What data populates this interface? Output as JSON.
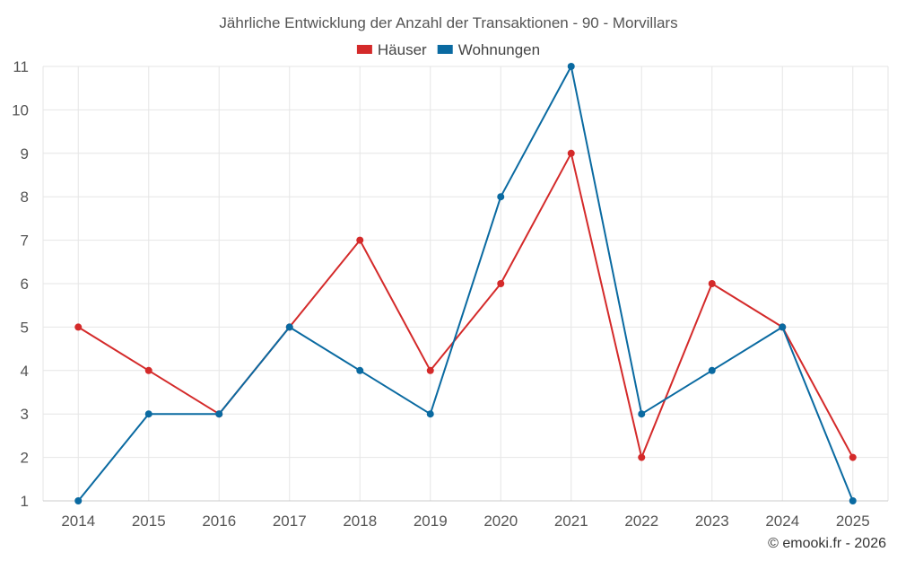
{
  "chart_data": {
    "type": "line",
    "title": "Jährliche Entwicklung der Anzahl der Transaktionen - 90 - Morvillars",
    "x": [
      "2014",
      "2015",
      "2016",
      "2017",
      "2018",
      "2019",
      "2020",
      "2021",
      "2022",
      "2023",
      "2024",
      "2025"
    ],
    "series": [
      {
        "name": "Häuser",
        "color": "#d42a2a",
        "values": [
          5,
          4,
          3,
          5,
          7,
          4,
          6,
          9,
          2,
          6,
          5,
          2
        ]
      },
      {
        "name": "Wohnungen",
        "color": "#0a6aa1",
        "values": [
          1,
          3,
          3,
          5,
          4,
          3,
          8,
          11,
          3,
          4,
          5,
          1
        ]
      }
    ],
    "ylim": [
      1,
      11
    ],
    "yticks": [
      "1",
      "2",
      "3",
      "4",
      "5",
      "6",
      "7",
      "8",
      "9",
      "10",
      "11"
    ],
    "grid": true,
    "legend_position": "top-center",
    "xlabel": "",
    "ylabel": ""
  },
  "credit": "© emooki.fr - 2026"
}
